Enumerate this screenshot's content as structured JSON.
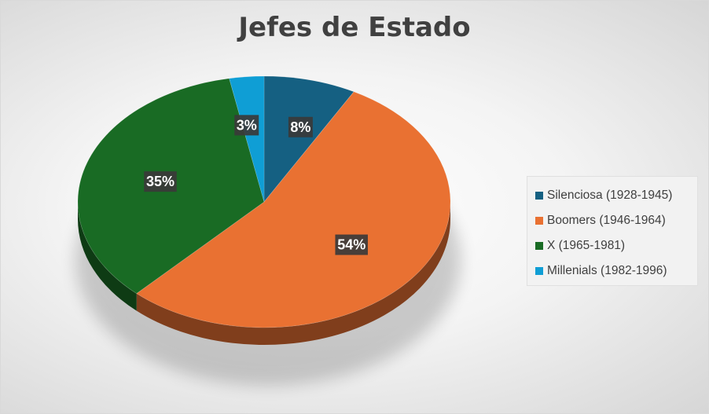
{
  "chart_data": {
    "type": "pie",
    "title": "Jefes de Estado",
    "categories": [
      "Silenciosa (1928-1945)",
      "Boomers (1946-1964)",
      "X (1965-1981)",
      "Millenials (1982-1996)"
    ],
    "values": [
      8,
      54,
      35,
      3
    ],
    "data_labels": [
      "8%",
      "54%",
      "35%",
      "3%"
    ],
    "colors": [
      "#156082",
      "#E97132",
      "#196B24",
      "#0F9ED5"
    ],
    "legend_position": "right",
    "style": "3d-pie"
  }
}
